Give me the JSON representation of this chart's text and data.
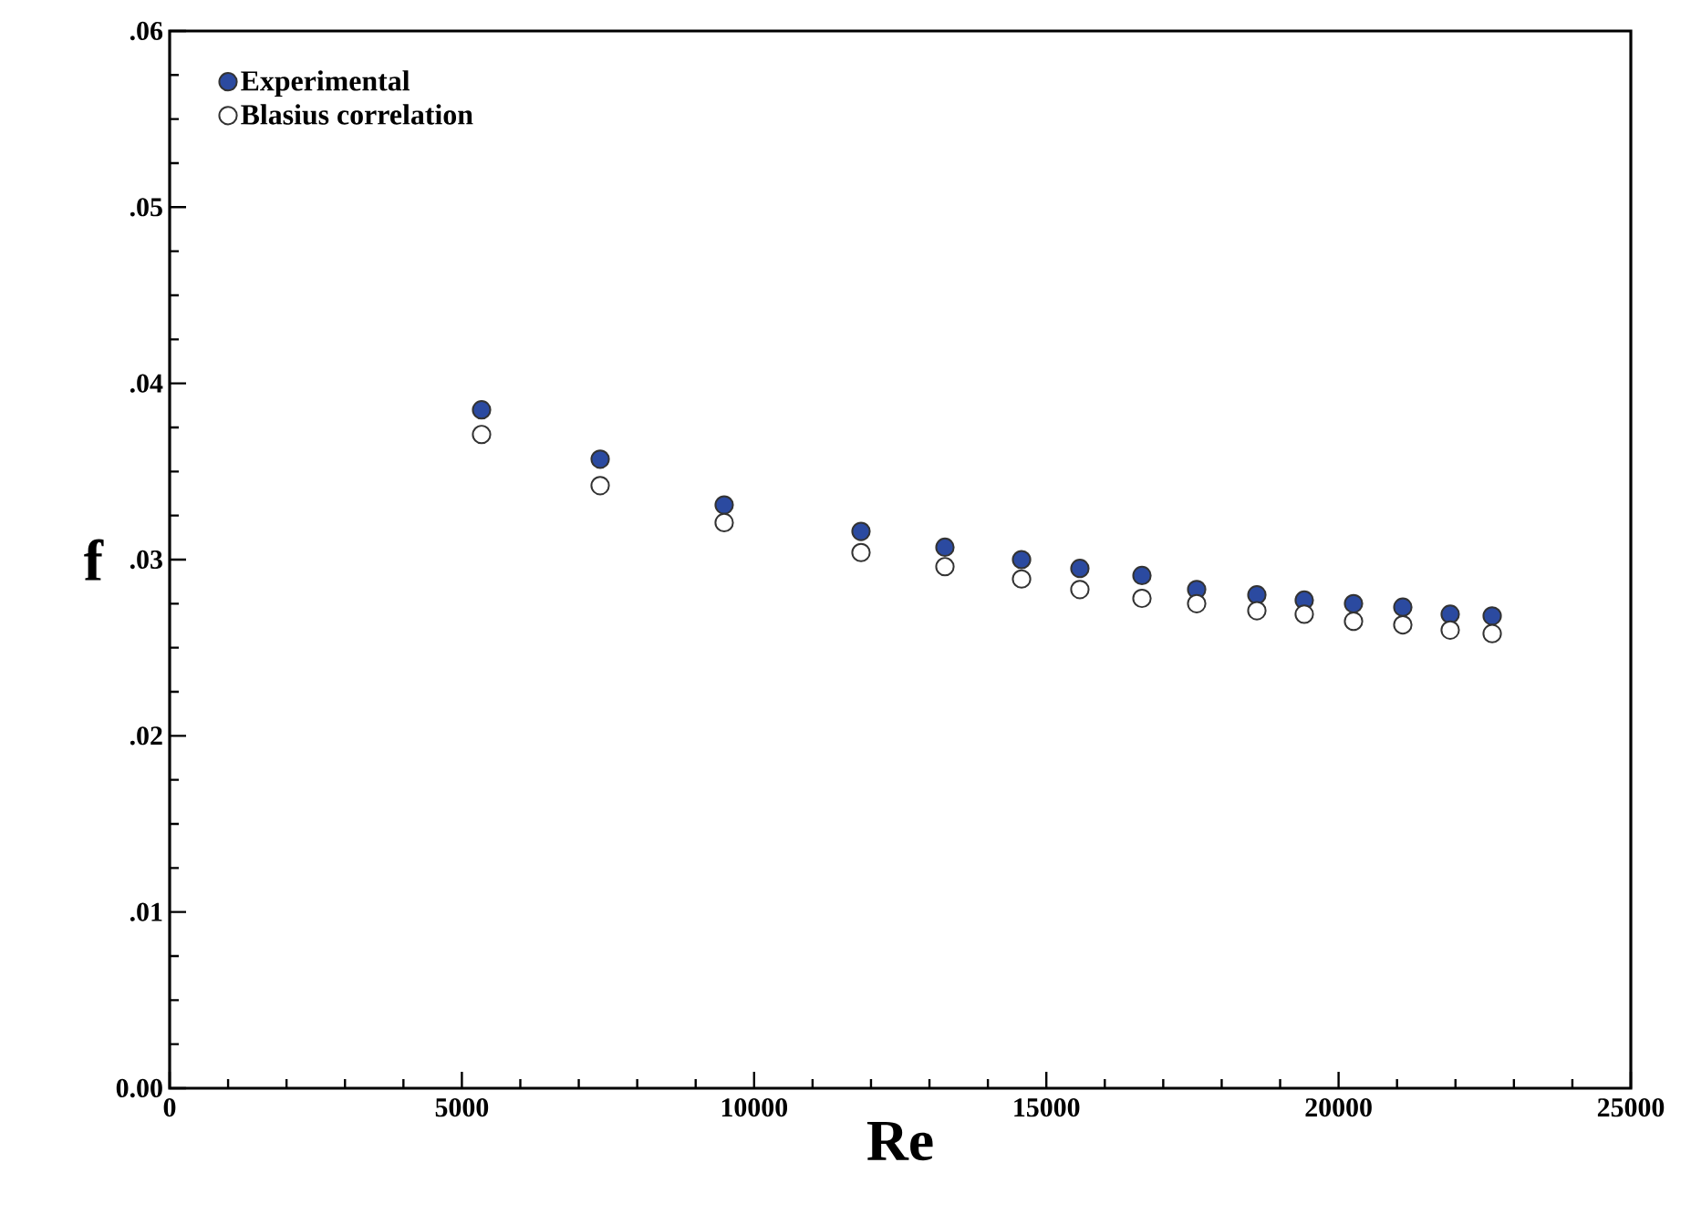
{
  "chart_data": {
    "type": "scatter",
    "xlabel": "Re",
    "ylabel": "f",
    "x": [
      5337,
      7366,
      9488,
      11829,
      13265,
      14576,
      15574,
      16636,
      17572,
      18602,
      19413,
      20256,
      21099,
      21910,
      22628
    ],
    "series": [
      {
        "name": "Experimental",
        "color": "#2b4aa0",
        "values": [
          0.0385,
          0.0357,
          0.0331,
          0.0316,
          0.0307,
          0.03,
          0.0295,
          0.0291,
          0.0283,
          0.028,
          0.0277,
          0.0275,
          0.0273,
          0.0269,
          0.0268
        ]
      },
      {
        "name": "Blasius correlation",
        "color": "#ffffff",
        "values": [
          0.0371,
          0.0342,
          0.0321,
          0.0304,
          0.0296,
          0.0289,
          0.0283,
          0.0278,
          0.0275,
          0.0271,
          0.0269,
          0.0265,
          0.0263,
          0.026,
          0.0258
        ]
      }
    ],
    "xlim": [
      0,
      25000
    ],
    "xticks": [
      0,
      5000,
      10000,
      15000,
      20000,
      25000
    ],
    "ylim": [
      0,
      0.06
    ],
    "yticks": [
      {
        "value": 0,
        "label": "0.00"
      },
      {
        "value": 0.01,
        "label": ".01"
      },
      {
        "value": 0.02,
        "label": ".02"
      },
      {
        "value": 0.03,
        "label": ".03"
      },
      {
        "value": 0.04,
        "label": ".04"
      },
      {
        "value": 0.05,
        "label": ".05"
      },
      {
        "value": 0.06,
        "label": ".06"
      }
    ],
    "grid": false,
    "legend": "top left",
    "marker": "circle"
  }
}
